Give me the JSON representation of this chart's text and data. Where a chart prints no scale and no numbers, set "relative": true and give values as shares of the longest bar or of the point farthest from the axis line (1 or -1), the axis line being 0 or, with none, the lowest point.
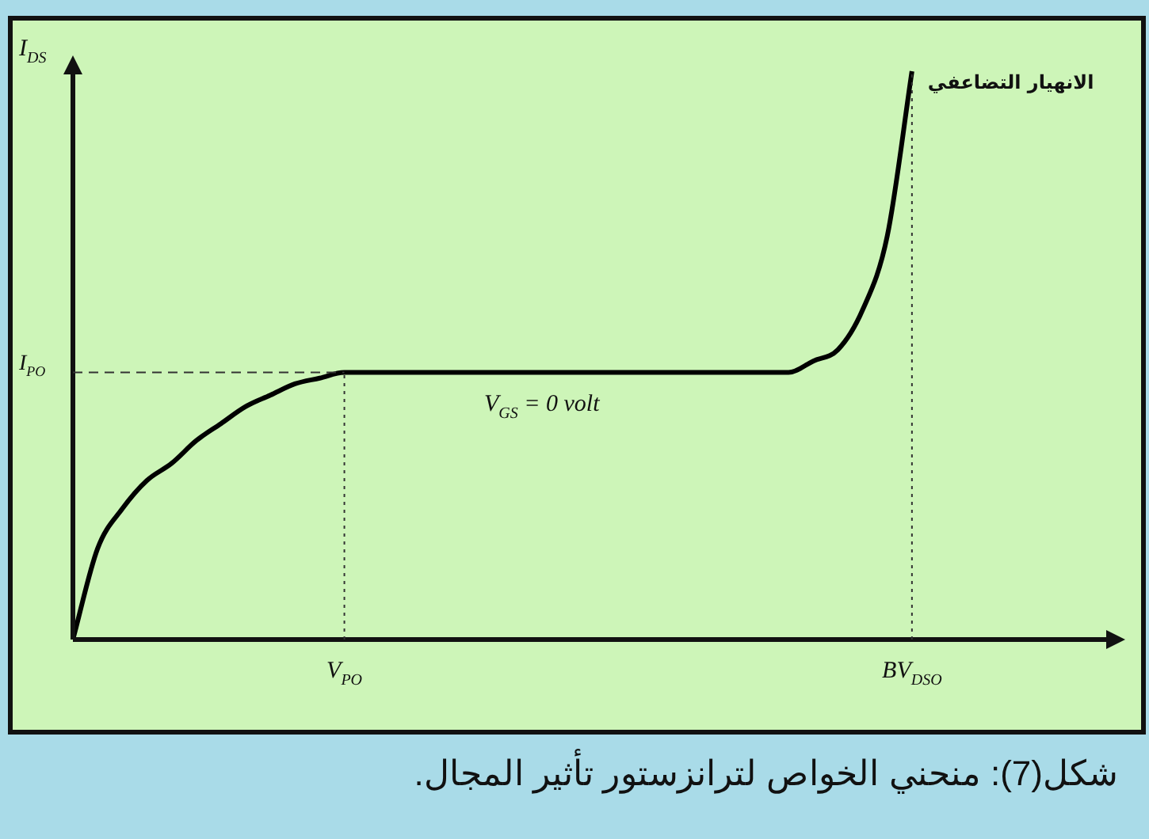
{
  "chart_data": {
    "type": "line",
    "relative": true,
    "ylabel": "I$_{DS}$",
    "legend": false,
    "grid": false,
    "marker": "none",
    "line_style": "solid",
    "categories": [
      null,
      null,
      null,
      null,
      null,
      null,
      null,
      null,
      null,
      null,
      null,
      "V$_{PO}$",
      null,
      null,
      null,
      null,
      null,
      null,
      null,
      null,
      null,
      null,
      null,
      null,
      null,
      null,
      null,
      null,
      null,
      null,
      null,
      null,
      null,
      null,
      "BV$_{DSO}$",
      null,
      null,
      null,
      null,
      null,
      null,
      null,
      null
    ],
    "series": [
      {
        "name": "V$_{GS}$ = 0 volt",
        "color": "#000000",
        "values": [
          0,
          0.16,
          0.23,
          0.28,
          0.31,
          0.35,
          0.38,
          0.41,
          0.43,
          0.45,
          0.46,
          0.47,
          0.47,
          0.47,
          0.47,
          0.47,
          0.47,
          0.47,
          0.47,
          0.47,
          0.47,
          0.47,
          0.47,
          0.47,
          0.47,
          0.47,
          0.47,
          0.47,
          0.47,
          0.47,
          0.49,
          0.51,
          0.58,
          0.71,
          1,
          null,
          null,
          null,
          null,
          null,
          null,
          null,
          null
        ]
      }
    ],
    "ref_lines": [
      {
        "axis": "y",
        "value": 0.47,
        "label": "I$_{PO}$",
        "line_style": "dashed",
        "color": "#333333"
      },
      {
        "axis": "x",
        "value": "V$_{PO}$",
        "line_style": "dotted",
        "color": "#333333"
      },
      {
        "axis": "x",
        "value": "BV$_{DSO}$",
        "line_style": "dotted",
        "color": "#333333"
      }
    ],
    "annotations": [
      "الانهيار التضاعفي",
      "شكل(7): منحني الخواص لترانزستور تأثير المجال."
    ]
  }
}
